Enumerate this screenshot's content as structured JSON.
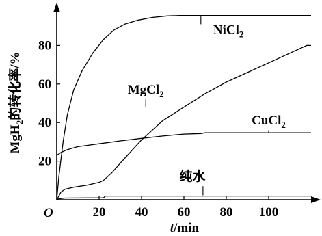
{
  "chart_data": {
    "type": "line",
    "origin_label": "O",
    "xlabel": {
      "var": "t",
      "unit": "/min"
    },
    "ylabel": {
      "base": "MgH",
      "sub": "2",
      "rest": "的转化率/%"
    },
    "xlim": [
      0,
      120
    ],
    "ylim": [
      0,
      100
    ],
    "x_ticks": [
      20,
      40,
      60,
      80,
      100
    ],
    "y_ticks": [
      20,
      40,
      60,
      80
    ],
    "grid": false,
    "legend": "none",
    "series": [
      {
        "name": {
          "base": "NiCl",
          "sub": "2"
        },
        "label_at": {
          "x": 81,
          "y": 86
        },
        "leader": [
          [
            68,
            95
          ],
          [
            68,
            91
          ]
        ],
        "points": [
          [
            0,
            0
          ],
          [
            1,
            12
          ],
          [
            3,
            30
          ],
          [
            5,
            44
          ],
          [
            8,
            57
          ],
          [
            12,
            67
          ],
          [
            17,
            76
          ],
          [
            22,
            83
          ],
          [
            27,
            88
          ],
          [
            32,
            91
          ],
          [
            38,
            93
          ],
          [
            45,
            94.5
          ],
          [
            52,
            95.3
          ],
          [
            58,
            95.5
          ],
          [
            120,
            95.5
          ]
        ]
      },
      {
        "name": {
          "base": "MgCl",
          "sub": "2"
        },
        "label_at": {
          "x": 42,
          "y": 55
        },
        "leader": [
          [
            42,
            52
          ],
          [
            42,
            48
          ]
        ],
        "points": [
          [
            0,
            0
          ],
          [
            1,
            2
          ],
          [
            2,
            4
          ],
          [
            4,
            5.5
          ],
          [
            8,
            6.5
          ],
          [
            14,
            7.5
          ],
          [
            20,
            9
          ],
          [
            22,
            10
          ],
          [
            26,
            14
          ],
          [
            30,
            19
          ],
          [
            35,
            25
          ],
          [
            40,
            31
          ],
          [
            45,
            36
          ],
          [
            50,
            41
          ],
          [
            60,
            48
          ],
          [
            70,
            55
          ],
          [
            80,
            61
          ],
          [
            90,
            66
          ],
          [
            100,
            71
          ],
          [
            110,
            76
          ],
          [
            118,
            80
          ],
          [
            120,
            80
          ]
        ]
      },
      {
        "name": {
          "base": "CuCl",
          "sub": "2"
        },
        "label_at": {
          "x": 100,
          "y": 39
        },
        "leader": [
          [
            100,
            36
          ],
          [
            100,
            34.6
          ]
        ],
        "points": [
          [
            0,
            23
          ],
          [
            2,
            24.5
          ],
          [
            5,
            26
          ],
          [
            10,
            27.5
          ],
          [
            20,
            29
          ],
          [
            30,
            30.5
          ],
          [
            40,
            31.8
          ],
          [
            50,
            33
          ],
          [
            60,
            34
          ],
          [
            68,
            34.3
          ],
          [
            70,
            34.7
          ],
          [
            120,
            34.7
          ]
        ]
      },
      {
        "name": {
          "base": "纯水",
          "sub": ""
        },
        "label_at": {
          "x": 64,
          "y": 10
        },
        "leader": [
          [
            69,
            7
          ],
          [
            69,
            2.3
          ]
        ],
        "points": [
          [
            0,
            0
          ],
          [
            1,
            0.5
          ],
          [
            4,
            0.9
          ],
          [
            22,
            1
          ],
          [
            23,
            1.9
          ],
          [
            120,
            1.9
          ]
        ]
      }
    ]
  }
}
